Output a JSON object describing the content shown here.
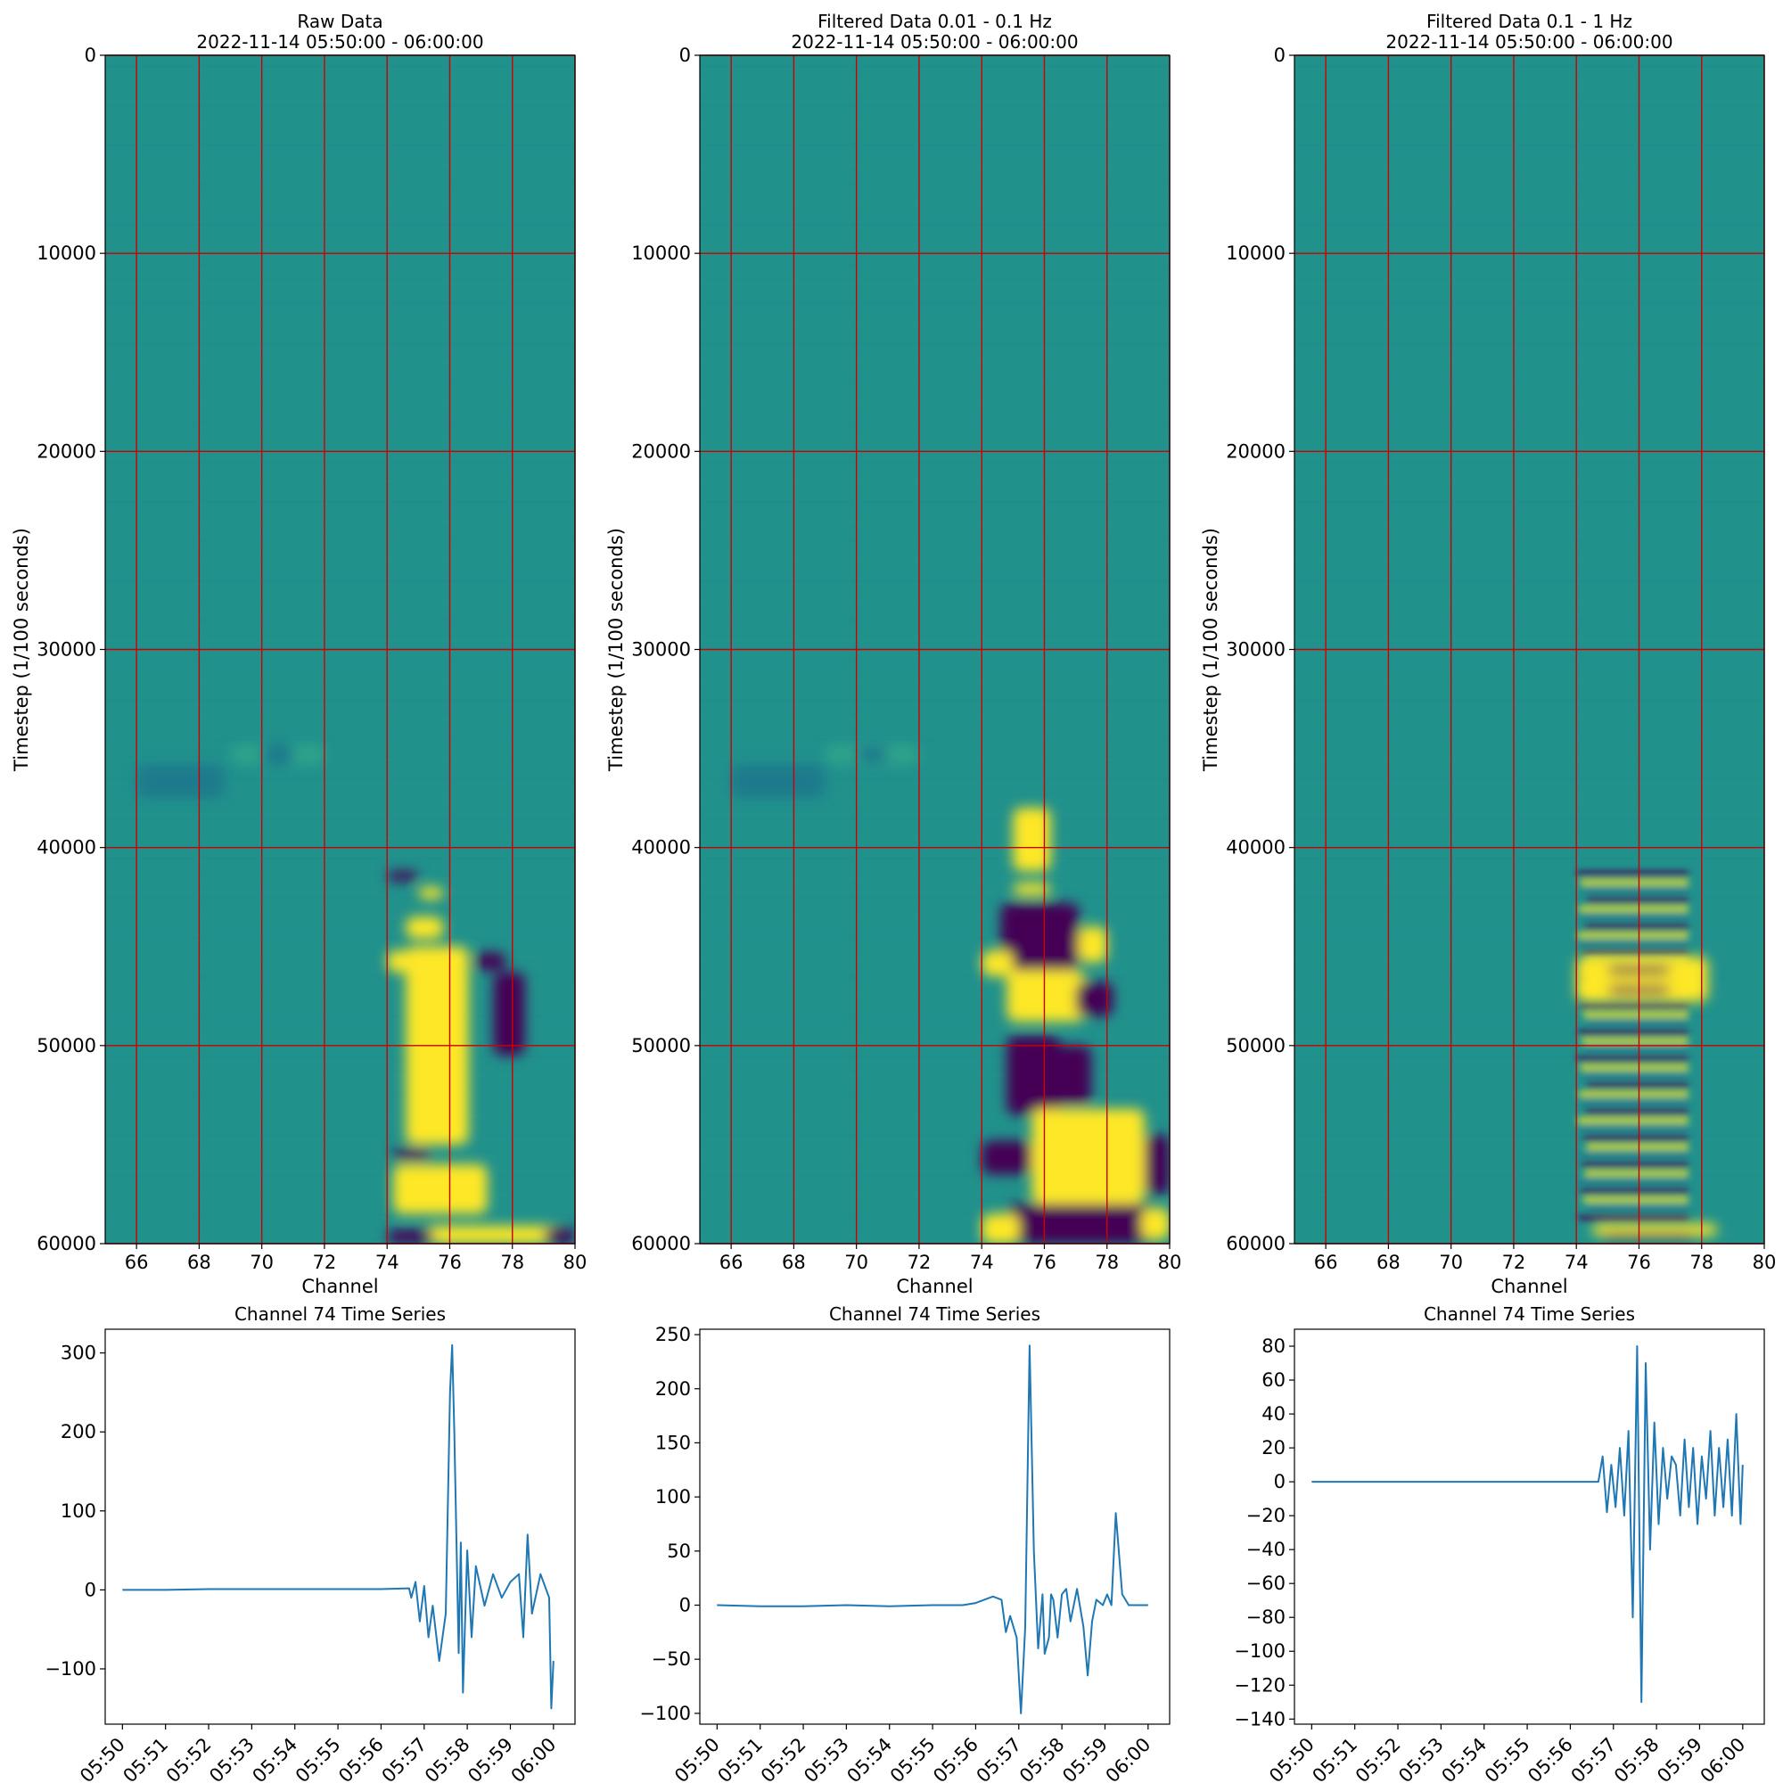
{
  "figure_title": "",
  "chart_data": [
    {
      "type": "heatmap",
      "title": "Raw Data",
      "subtitle": "2022-11-14 05:50:00 - 06:00:00",
      "xlabel": "Channel",
      "ylabel": "Timestep (1/100 seconds)",
      "xlim": [
        65,
        80
      ],
      "ylim": [
        60000,
        0
      ],
      "xticks": [
        66,
        68,
        70,
        72,
        74,
        76,
        78,
        80
      ],
      "yticks": [
        0,
        10000,
        20000,
        30000,
        40000,
        50000,
        60000
      ],
      "grid": true,
      "grid_color": "#cc0000",
      "colormap": "viridis",
      "background_color": "#21918c",
      "colors": {
        "high": "#fde725",
        "low": "#440154",
        "mid_light": "#2da38a",
        "mid_dark": "#1f7a8c"
      },
      "features": [
        {
          "kind": "high",
          "x": [
            74.6,
            76.6
          ],
          "y": [
            45000,
            55000
          ]
        },
        {
          "kind": "high",
          "x": [
            74,
            75.2
          ],
          "y": [
            45200,
            46300
          ]
        },
        {
          "kind": "high",
          "x": [
            74.6,
            75.8
          ],
          "y": [
            43500,
            44600
          ]
        },
        {
          "kind": "high",
          "x": [
            74.2,
            77.2
          ],
          "y": [
            56000,
            58500
          ]
        },
        {
          "kind": "high",
          "x": [
            75.2,
            79.6
          ],
          "y": [
            59100,
            60000
          ]
        },
        {
          "kind": "high",
          "x": [
            75.0,
            75.8
          ],
          "y": [
            42000,
            42600
          ]
        },
        {
          "kind": "low",
          "x": [
            77.4,
            78.4
          ],
          "y": [
            46300,
            50500
          ]
        },
        {
          "kind": "low",
          "x": [
            76.8,
            77.8
          ],
          "y": [
            45300,
            46200
          ]
        },
        {
          "kind": "low",
          "x": [
            74.0,
            75.0
          ],
          "y": [
            41200,
            41700
          ]
        },
        {
          "kind": "low",
          "x": [
            74.0,
            75.5
          ],
          "y": [
            59300,
            60000
          ]
        },
        {
          "kind": "low",
          "x": [
            79.0,
            80.0
          ],
          "y": [
            59200,
            60000
          ]
        },
        {
          "kind": "low",
          "x": [
            74.2,
            75.4
          ],
          "y": [
            55200,
            55800
          ]
        },
        {
          "kind": "mid_light",
          "x": [
            69,
            72
          ],
          "y": [
            34800,
            35800
          ]
        },
        {
          "kind": "mid_dark",
          "x": [
            66,
            68.8
          ],
          "y": [
            35800,
            37500
          ]
        },
        {
          "kind": "mid_dark",
          "x": [
            70,
            71
          ],
          "y": [
            34800,
            35800
          ]
        }
      ]
    },
    {
      "type": "heatmap",
      "title": "Filtered Data 0.01 - 0.1 Hz",
      "subtitle": "2022-11-14 05:50:00 - 06:00:00",
      "xlabel": "Channel",
      "ylabel": "Timestep (1/100 seconds)",
      "xlim": [
        65,
        80
      ],
      "ylim": [
        60000,
        0
      ],
      "xticks": [
        66,
        68,
        70,
        72,
        74,
        76,
        78,
        80
      ],
      "yticks": [
        0,
        10000,
        20000,
        30000,
        40000,
        50000,
        60000
      ],
      "grid": true,
      "grid_color": "#cc0000",
      "colormap": "viridis",
      "background_color": "#21918c",
      "colors": {
        "high": "#fde725",
        "low": "#440154",
        "mid_light": "#2da38a",
        "mid_dark": "#1f7a8c"
      },
      "features": [
        {
          "kind": "high",
          "x": [
            75.0,
            76.2
          ],
          "y": [
            38000,
            41200
          ]
        },
        {
          "kind": "high",
          "x": [
            75.0,
            76.2
          ],
          "y": [
            41800,
            42400
          ]
        },
        {
          "kind": "low",
          "x": [
            74.6,
            77.1
          ],
          "y": [
            42800,
            46200
          ]
        },
        {
          "kind": "high",
          "x": [
            74.0,
            75.0
          ],
          "y": [
            45200,
            46500
          ]
        },
        {
          "kind": "high",
          "x": [
            74.8,
            77.3
          ],
          "y": [
            46200,
            48800
          ]
        },
        {
          "kind": "low",
          "x": [
            77.0,
            78.2
          ],
          "y": [
            46800,
            48500
          ]
        },
        {
          "kind": "high",
          "x": [
            77.1,
            78.0
          ],
          "y": [
            44000,
            45800
          ]
        },
        {
          "kind": "low",
          "x": [
            74.8,
            76.5
          ],
          "y": [
            49500,
            53500
          ]
        },
        {
          "kind": "low",
          "x": [
            76.2,
            77.5
          ],
          "y": [
            50000,
            53000
          ]
        },
        {
          "kind": "high",
          "x": [
            75.6,
            79.2
          ],
          "y": [
            53200,
            58000
          ]
        },
        {
          "kind": "low",
          "x": [
            74.0,
            75.6
          ],
          "y": [
            54800,
            56500
          ]
        },
        {
          "kind": "low",
          "x": [
            74.8,
            79.5
          ],
          "y": [
            58000,
            60000
          ]
        },
        {
          "kind": "high",
          "x": [
            74.0,
            75.2
          ],
          "y": [
            58500,
            60000
          ]
        },
        {
          "kind": "high",
          "x": [
            79.1,
            80.0
          ],
          "y": [
            58200,
            59800
          ]
        },
        {
          "kind": "low",
          "x": [
            79.2,
            80.0
          ],
          "y": [
            54500,
            57500
          ]
        },
        {
          "kind": "mid_light",
          "x": [
            69,
            72
          ],
          "y": [
            34800,
            35800
          ]
        },
        {
          "kind": "mid_dark",
          "x": [
            66,
            69
          ],
          "y": [
            35800,
            37500
          ]
        },
        {
          "kind": "mid_dark",
          "x": [
            70,
            71
          ],
          "y": [
            34900,
            35700
          ]
        }
      ]
    },
    {
      "type": "heatmap",
      "title": "Filtered Data 0.1 - 1 Hz",
      "subtitle": "2022-11-14 05:50:00 - 06:00:00",
      "xlabel": "Channel",
      "ylabel": "Timestep (1/100 seconds)",
      "xlim": [
        65,
        80
      ],
      "ylim": [
        60000,
        0
      ],
      "xticks": [
        66,
        68,
        70,
        72,
        74,
        76,
        78,
        80
      ],
      "yticks": [
        0,
        10000,
        20000,
        30000,
        40000,
        50000,
        60000
      ],
      "grid": true,
      "grid_color": "#cc0000",
      "colormap": "viridis",
      "background_color": "#21918c",
      "colors": {
        "high": "#fde725",
        "low": "#440154",
        "mid_light": "#2da38a",
        "mid_dark": "#1f7a8c"
      },
      "stripes": {
        "x": [
          74.0,
          77.6
        ],
        "y": [
          41200,
          59000
        ],
        "count": 40
      },
      "features": [
        {
          "kind": "high",
          "x": [
            74.0,
            78.2
          ],
          "y": [
            45500,
            47800
          ]
        },
        {
          "kind": "low",
          "x": [
            75.0,
            77.0
          ],
          "y": [
            46000,
            46400
          ]
        },
        {
          "kind": "low",
          "x": [
            75.0,
            77.0
          ],
          "y": [
            47000,
            47400
          ]
        },
        {
          "kind": "high",
          "x": [
            74.5,
            78.5
          ],
          "y": [
            59000,
            59600
          ]
        },
        {
          "kind": "low",
          "x": [
            74.8,
            77.8
          ],
          "y": [
            59500,
            59800
          ]
        }
      ]
    },
    {
      "type": "line",
      "title": "Channel 74 Time Series",
      "xlabel": "",
      "ylabel": "",
      "xlim": [
        -0.4,
        10.5
      ],
      "ylim": [
        -170,
        330
      ],
      "xticks": [
        0,
        1,
        2,
        3,
        4,
        5,
        6,
        7,
        8,
        9,
        10
      ],
      "xticklabels": [
        "05:50",
        "05:51",
        "05:52",
        "05:53",
        "05:54",
        "05:55",
        "05:56",
        "05:57",
        "05:58",
        "05:59",
        "06:00"
      ],
      "yticks": [
        -100,
        0,
        100,
        200,
        300
      ],
      "yticklabels": [
        "−100",
        "0",
        "100",
        "200",
        "300"
      ],
      "line_color": "#1f77b4",
      "series": [
        {
          "x": [
            0,
            1,
            2,
            3,
            4,
            5,
            6,
            6.65,
            6.7,
            6.8,
            6.9,
            7.0,
            7.1,
            7.2,
            7.35,
            7.5,
            7.6,
            7.65,
            7.7,
            7.8,
            7.85,
            7.9,
            8.0,
            8.1,
            8.2,
            8.4,
            8.6,
            8.8,
            9.0,
            9.2,
            9.3,
            9.4,
            9.5,
            9.7,
            9.9,
            9.95,
            10.0
          ],
          "y": [
            0,
            0,
            1,
            1,
            1,
            1,
            1,
            2,
            -10,
            10,
            -40,
            5,
            -60,
            -20,
            -90,
            -30,
            250,
            310,
            200,
            -80,
            60,
            -130,
            50,
            -60,
            30,
            -20,
            20,
            -10,
            10,
            20,
            -60,
            70,
            -30,
            20,
            -10,
            -150,
            -90
          ]
        }
      ]
    },
    {
      "type": "line",
      "title": "Channel 74 Time Series",
      "xlabel": "",
      "ylabel": "",
      "xlim": [
        -0.4,
        10.5
      ],
      "ylim": [
        -110,
        255
      ],
      "xticks": [
        0,
        1,
        2,
        3,
        4,
        5,
        6,
        7,
        8,
        9,
        10
      ],
      "xticklabels": [
        "05:50",
        "05:51",
        "05:52",
        "05:53",
        "05:54",
        "05:55",
        "05:56",
        "05:57",
        "05:58",
        "05:59",
        "06:00"
      ],
      "yticks": [
        -100,
        -50,
        0,
        50,
        100,
        150,
        200,
        250
      ],
      "yticklabels": [
        "−100",
        "−50",
        "0",
        "50",
        "100",
        "150",
        "200",
        "250"
      ],
      "line_color": "#1f77b4",
      "series": [
        {
          "x": [
            0,
            1,
            2,
            3,
            4,
            5,
            5.7,
            6.0,
            6.2,
            6.4,
            6.6,
            6.7,
            6.8,
            6.95,
            7.05,
            7.15,
            7.25,
            7.35,
            7.45,
            7.55,
            7.6,
            7.7,
            7.75,
            7.8,
            7.9,
            8.0,
            8.1,
            8.2,
            8.35,
            8.5,
            8.6,
            8.7,
            8.8,
            8.95,
            9.05,
            9.15,
            9.25,
            9.4,
            9.55,
            9.7,
            9.8,
            9.9,
            10.0
          ],
          "y": [
            0,
            -1,
            -1,
            0,
            -1,
            0,
            0,
            2,
            5,
            8,
            5,
            -25,
            -10,
            -30,
            -100,
            -20,
            240,
            50,
            -40,
            10,
            -45,
            -30,
            10,
            5,
            -30,
            10,
            15,
            -15,
            15,
            -20,
            -65,
            -15,
            5,
            0,
            10,
            0,
            85,
            10,
            0,
            0,
            0,
            0,
            0
          ]
        }
      ]
    },
    {
      "type": "line",
      "title": "Channel 74 Time Series",
      "xlabel": "",
      "ylabel": "",
      "xlim": [
        -0.4,
        10.5
      ],
      "ylim": [
        -143,
        90
      ],
      "xticks": [
        0,
        1,
        2,
        3,
        4,
        5,
        6,
        7,
        8,
        9,
        10
      ],
      "xticklabels": [
        "05:50",
        "05:51",
        "05:52",
        "05:53",
        "05:54",
        "05:55",
        "05:56",
        "05:57",
        "05:58",
        "05:59",
        "06:00"
      ],
      "yticks": [
        -140,
        -120,
        -100,
        -80,
        -60,
        -40,
        -20,
        0,
        20,
        40,
        60,
        80
      ],
      "yticklabels": [
        "−140",
        "−120",
        "−100",
        "−80",
        "−60",
        "−40",
        "−20",
        "0",
        "20",
        "40",
        "60",
        "80"
      ],
      "line_color": "#1f77b4",
      "series": [
        {
          "x": [
            0,
            1,
            2,
            3,
            4,
            5,
            6,
            6.65,
            6.75,
            6.85,
            6.95,
            7.05,
            7.15,
            7.25,
            7.35,
            7.45,
            7.55,
            7.65,
            7.75,
            7.85,
            7.95,
            8.05,
            8.15,
            8.25,
            8.35,
            8.45,
            8.55,
            8.65,
            8.75,
            8.85,
            8.95,
            9.05,
            9.15,
            9.25,
            9.35,
            9.45,
            9.55,
            9.65,
            9.75,
            9.85,
            9.95,
            10.0
          ],
          "y": [
            0,
            0,
            0,
            0,
            0,
            0,
            0,
            0,
            15,
            -18,
            10,
            -15,
            20,
            -20,
            30,
            -80,
            80,
            -130,
            70,
            -40,
            35,
            -25,
            20,
            -10,
            15,
            10,
            -20,
            25,
            -15,
            20,
            -25,
            15,
            -10,
            30,
            -20,
            20,
            -15,
            25,
            -20,
            40,
            -25,
            10
          ]
        }
      ]
    }
  ]
}
